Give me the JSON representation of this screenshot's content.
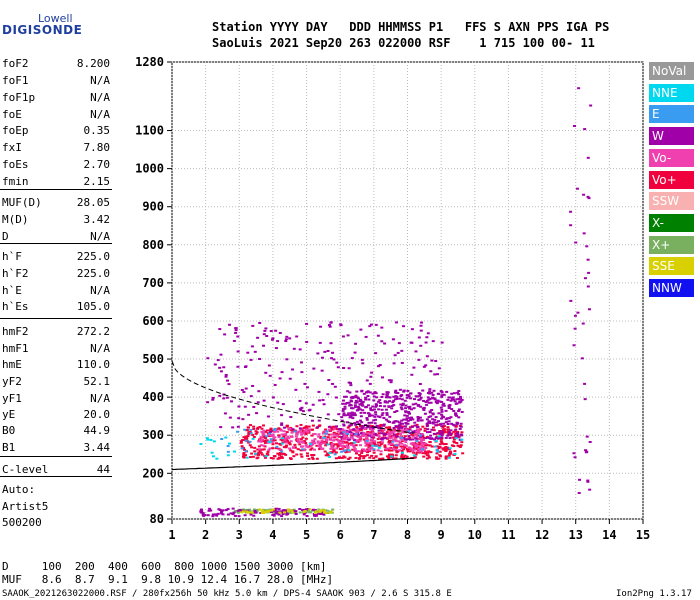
{
  "logo": {
    "line1": "Lowell",
    "line2": "DIGISONDE"
  },
  "header": {
    "row1": "Station YYYY DAY   DDD HHMMSS P1   FFS S AXN PPS IGA PS",
    "row2": "SaoLuis 2021 Sep20 263 022000 RSF    1 715 100 00- 11"
  },
  "params": [
    {
      "name": "foF2",
      "value": "8.200"
    },
    {
      "name": "foF1",
      "value": "N/A"
    },
    {
      "name": "foF1p",
      "value": "N/A"
    },
    {
      "name": "foE",
      "value": "N/A"
    },
    {
      "name": "foEp",
      "value": "0.35"
    },
    {
      "name": "fxI",
      "value": "7.80"
    },
    {
      "name": "foEs",
      "value": "2.70"
    },
    {
      "name": "fmin",
      "value": "2.15"
    },
    {
      "name": "MUF(D)",
      "value": "28.05"
    },
    {
      "name": "M(D)",
      "value": "3.42"
    },
    {
      "name": "D",
      "value": "N/A"
    },
    {
      "name": "h`F",
      "value": "225.0"
    },
    {
      "name": "h`F2",
      "value": "225.0"
    },
    {
      "name": "h`E",
      "value": "N/A"
    },
    {
      "name": "h`Es",
      "value": "105.0"
    },
    {
      "name": "hmF2",
      "value": "272.2"
    },
    {
      "name": "hmF1",
      "value": "N/A"
    },
    {
      "name": "hmE",
      "value": "110.0"
    },
    {
      "name": "yF2",
      "value": "52.1"
    },
    {
      "name": "yF1",
      "value": "N/A"
    },
    {
      "name": "yE",
      "value": "20.0"
    },
    {
      "name": "B0",
      "value": "44.9"
    },
    {
      "name": "B1",
      "value": "3.44"
    },
    {
      "name": "C-level",
      "value": "44"
    }
  ],
  "autoscaling": {
    "line1": "Auto:",
    "line2": "Artist5",
    "line3": "500200"
  },
  "legend": [
    {
      "label": "NoVal",
      "color": "#999999"
    },
    {
      "label": "NNE",
      "color": "#00d8f0"
    },
    {
      "label": "E",
      "color": "#3a9cf0"
    },
    {
      "label": "W",
      "color": "#a000a8"
    },
    {
      "label": "Vo-",
      "color": "#f040b0"
    },
    {
      "label": "Vo+",
      "color": "#f0003c"
    },
    {
      "label": "SSW",
      "color": "#f8b0b0"
    },
    {
      "label": "X-",
      "color": "#008000"
    },
    {
      "label": "X+",
      "color": "#78b060"
    },
    {
      "label": "SSE",
      "color": "#d8d000"
    },
    {
      "label": "NNW",
      "color": "#1010f0"
    }
  ],
  "footer": {
    "dline": "D     100  200  400  600  800 1000 1500 3000 [km]",
    "mufline": "MUF   8.6  8.7  9.1  9.8 10.9 12.4 16.7 28.0 [MHz]",
    "file": "SAAOK_2021263022000.RSF / 280fx256h 50 kHz 5.0 km / DPS-4 SAAOK 903 / 2.6 S 315.8 E",
    "version": "Ion2Png 1.3.17"
  },
  "chart_data": {
    "type": "scatter",
    "xlim": [
      1,
      15
    ],
    "ylim": [
      80,
      1280
    ],
    "x_ticks": [
      1,
      2,
      3,
      4,
      5,
      6,
      7,
      8,
      9,
      10,
      11,
      12,
      13,
      14,
      15
    ],
    "y_ticks": [
      80,
      200,
      300,
      400,
      500,
      600,
      700,
      800,
      900,
      1000,
      1100,
      1280
    ],
    "grid": true,
    "clusters": [
      {
        "color_key": "Vo+",
        "xrange": [
          3.0,
          9.6
        ],
        "yrange": [
          240,
          330
        ],
        "n": 700
      },
      {
        "color_key": "W",
        "xrange": [
          6.0,
          9.6
        ],
        "yrange": [
          290,
          420
        ],
        "n": 500
      },
      {
        "color_key": "Vo-",
        "xrange": [
          3.5,
          8.5
        ],
        "yrange": [
          260,
          320
        ],
        "n": 300
      },
      {
        "color_key": "NNE",
        "xrange": [
          1.8,
          10.0
        ],
        "yrange": [
          240,
          300
        ],
        "n": 40
      },
      {
        "color_key": "E",
        "xrange": [
          2.0,
          9.0
        ],
        "yrange": [
          250,
          320
        ],
        "n": 40
      },
      {
        "color_key": "W",
        "xrange": [
          2.0,
          9.0
        ],
        "yrange": [
          310,
          600
        ],
        "n": 260
      },
      {
        "color_key": "X+",
        "xrange": [
          2.8,
          5.8
        ],
        "yrange": [
          98,
          108
        ],
        "n": 90
      },
      {
        "color_key": "W",
        "xrange": [
          1.8,
          5.5
        ],
        "yrange": [
          90,
          110
        ],
        "n": 110
      },
      {
        "color_key": "SSE",
        "xrange": [
          3.0,
          5.8
        ],
        "yrange": [
          98,
          108
        ],
        "n": 40
      },
      {
        "color_key": "W",
        "xrange": [
          12.8,
          13.4
        ],
        "yrange": [
          100,
          1240
        ],
        "n": 40
      }
    ]
  }
}
